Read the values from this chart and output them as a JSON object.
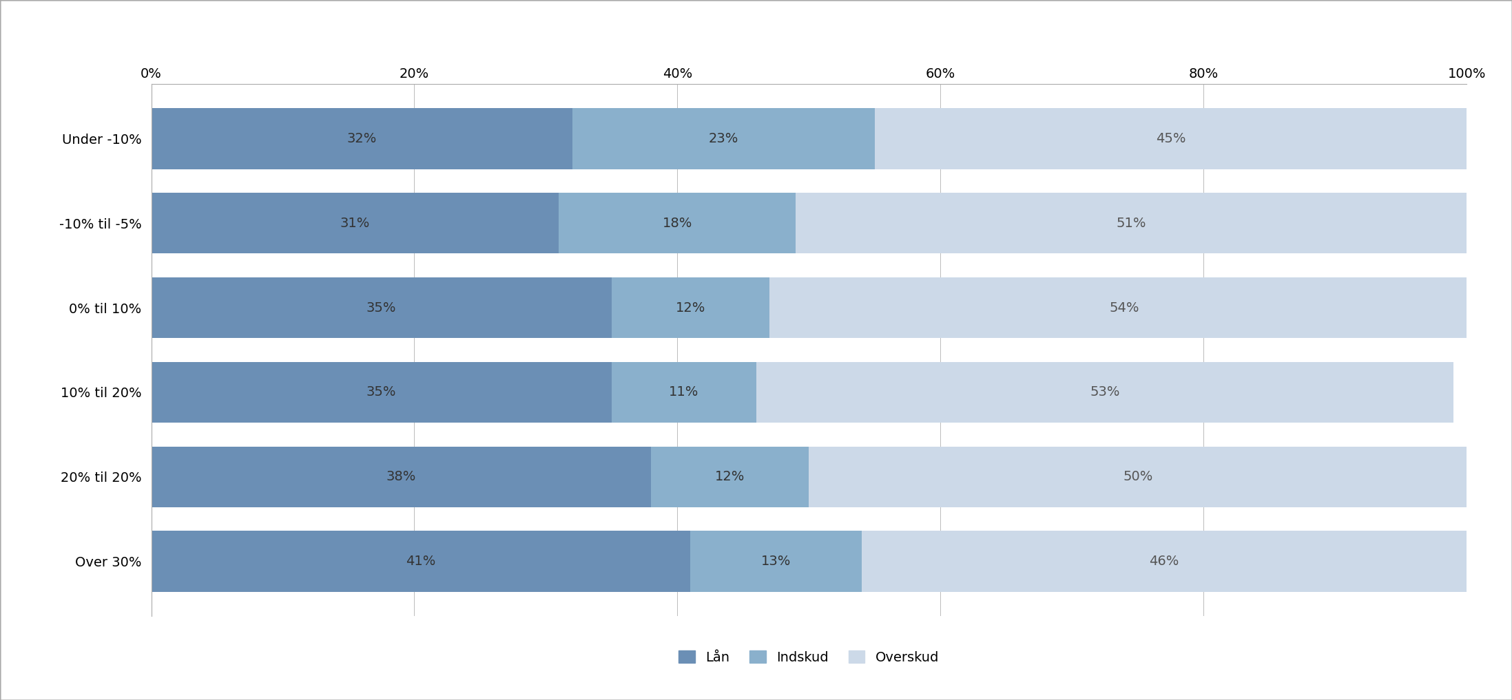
{
  "categories": [
    "Under -10%",
    "-10% til -5%",
    "0% til 10%",
    "10% til 20%",
    "20% til 20%",
    "Over 30%"
  ],
  "laan": [
    32,
    31,
    35,
    35,
    38,
    41
  ],
  "indskud": [
    23,
    18,
    12,
    11,
    12,
    13
  ],
  "overskud": [
    45,
    51,
    54,
    53,
    50,
    46
  ],
  "color_laan": "#6b8fb5",
  "color_indskud": "#8ab0cc",
  "color_overskud": "#ccd9e8",
  "legend_labels": [
    "Lån",
    "Indskud",
    "Overskud"
  ],
  "xlabel_ticks": [
    "0%",
    "20%",
    "40%",
    "60%",
    "80%",
    "100%"
  ],
  "xlabel_vals": [
    0,
    20,
    40,
    60,
    80,
    100
  ],
  "bar_height": 0.72,
  "background_color": "#ffffff",
  "text_fontsize": 14,
  "legend_fontsize": 14,
  "tick_fontsize": 14,
  "text_color_laan": "#333333",
  "text_color_indskud": "#333333",
  "text_color_overskud": "#555555"
}
